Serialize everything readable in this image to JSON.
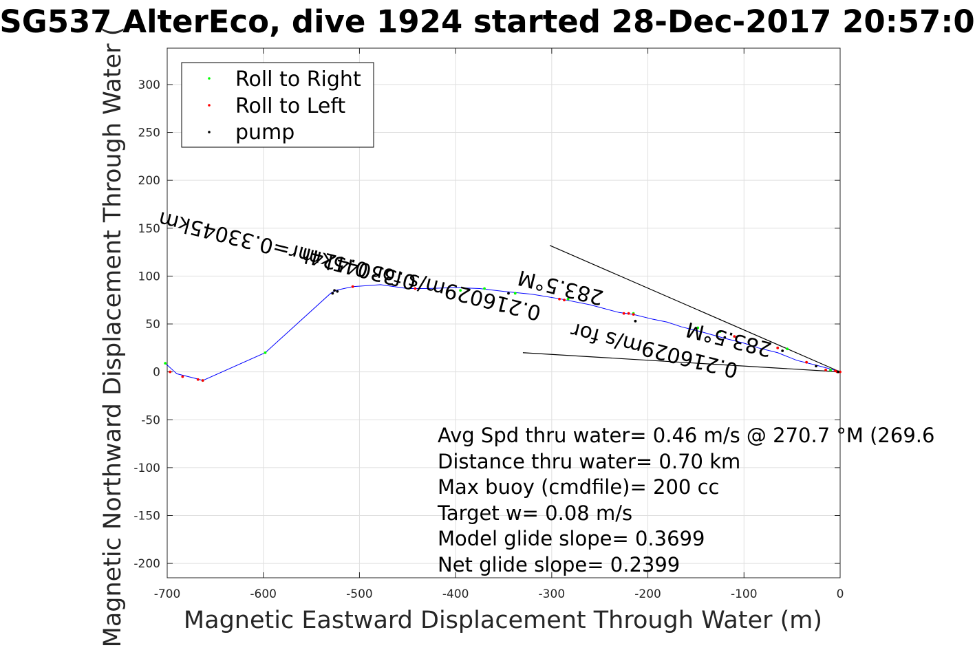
{
  "chart_data": {
    "type": "line",
    "title": "SG537 AlterEco, dive 1924 started 28-Dec-2017 20:57:0",
    "xlabel": "Magnetic Eastward Displacement Through Water (m)",
    "ylabel": "Magnetic Northward Displacement Through Water (",
    "xlim": [
      -700,
      0
    ],
    "ylim": [
      -215,
      338
    ],
    "xticks": [
      -700,
      -600,
      -500,
      -400,
      -300,
      -200,
      -100,
      0
    ],
    "yticks": [
      -200,
      -150,
      -100,
      -50,
      0,
      50,
      100,
      150,
      200,
      250,
      300
    ],
    "xtick_labels": [
      "-700",
      "-600",
      "-500",
      "-400",
      "-300",
      "-200",
      "-100",
      "0"
    ],
    "ytick_labels": [
      "-200",
      "-150",
      "-100",
      "-50",
      "0",
      "50",
      "100",
      "150",
      "200",
      "250",
      "300"
    ],
    "grid": true,
    "legend": {
      "location": "top-left",
      "entries": [
        {
          "label": "Roll to Right",
          "color": "#00ff00"
        },
        {
          "label": "Roll to Left",
          "color": "#ff0000"
        },
        {
          "label": "pump",
          "color": "#000000"
        }
      ]
    },
    "track": {
      "color": "#0000ff",
      "x": [
        0,
        -10,
        -25,
        -45,
        -65,
        -85,
        -100,
        -120,
        -145,
        -165,
        -180,
        -195,
        -215,
        -230,
        -260,
        -290,
        -320,
        -350,
        -375,
        -400,
        -430,
        -450,
        -478,
        -507,
        -525,
        -530,
        -598,
        -663,
        -670,
        -690,
        -702
      ],
      "y": [
        0,
        3,
        7,
        12,
        20,
        25,
        30,
        35,
        42,
        47,
        52,
        55,
        60,
        62,
        70,
        76,
        81,
        84,
        87,
        88,
        87,
        87,
        91,
        89,
        85,
        82,
        20,
        -9,
        -7,
        -2,
        9
      ]
    },
    "series": [
      {
        "name": "Roll to Right",
        "color": "#00ff00",
        "x": [
          -395,
          -370,
          -338,
          -283,
          -215,
          -148,
          -125,
          -55,
          -10,
          -2,
          -598,
          -663,
          -702
        ],
        "y": [
          85,
          87,
          82,
          76,
          61,
          46,
          42,
          24,
          2,
          0,
          20,
          -9,
          9
        ]
      },
      {
        "name": "Roll to Left",
        "color": "#ff0000",
        "x": [
          -442,
          -507,
          -663,
          -668,
          -684,
          -697,
          -292,
          -287,
          -225,
          -220,
          -215,
          -110,
          -65,
          -35,
          -15,
          -5,
          -3,
          0
        ],
        "y": [
          87,
          89,
          -9,
          -8,
          -5,
          0,
          76,
          75,
          61,
          61,
          60,
          37,
          25,
          10,
          2,
          1,
          0,
          0
        ]
      },
      {
        "name": "pump",
        "color": "#000000",
        "x": [
          -526,
          -528,
          -523,
          -345,
          -213,
          -120,
          -60,
          -25,
          -2
        ],
        "y": [
          85,
          82,
          84,
          82,
          53,
          36,
          22,
          6,
          0
        ]
      }
    ],
    "vectors": [
      {
        "x": [
          0,
          -302
        ],
        "y": [
          0,
          132
        ]
      },
      {
        "x": [
          0,
          -330
        ],
        "y": [
          0,
          20
        ]
      }
    ],
    "rotated_labels": [
      {
        "text": "0.33045km",
        "x": -440,
        "y": 100,
        "angle": 194
      },
      {
        "text": "283.5°M",
        "x": -245,
        "y": 84,
        "angle": 194
      },
      {
        "text": "0.216029m/s for 0.424hr=0.33045km",
        "x": -310,
        "y": 68,
        "angle": 194
      },
      {
        "text": "283.5°M",
        "x": -70,
        "y": 30,
        "angle": 194
      },
      {
        "text": "0.216029m/s for",
        "x": -105,
        "y": 8,
        "angle": 194
      }
    ],
    "annotations": [
      "Avg Spd thru water=  0.46 m/s @ 270.7 °M (269.6",
      "Distance thru water=  0.70 km",
      "Max buoy (cmdfile)= 200 cc",
      "Target w= 0.08 m/s",
      "Model glide slope= 0.3699",
      "Net glide slope= 0.2399"
    ]
  }
}
